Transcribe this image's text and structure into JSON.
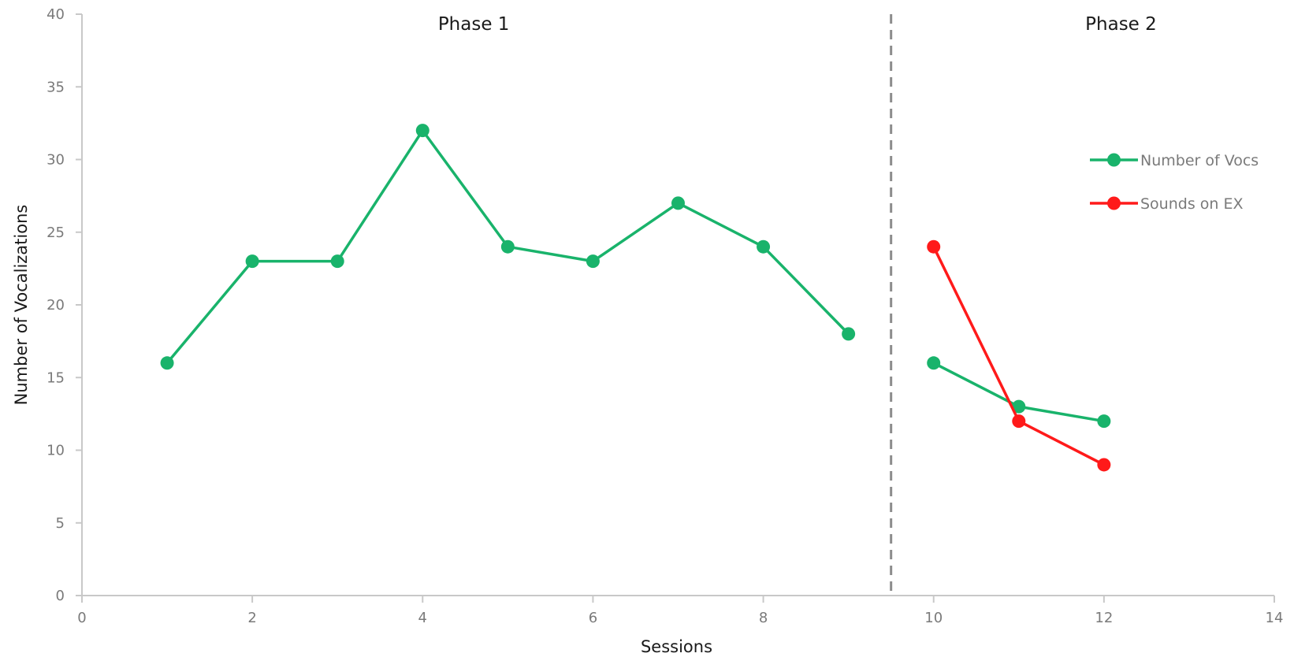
{
  "chart_data": {
    "type": "line",
    "xlabel": "Sessions",
    "ylabel": "Number of Vocalizations",
    "xlim": [
      0,
      14
    ],
    "ylim": [
      0,
      40
    ],
    "xticks": [
      "0",
      "2",
      "4",
      "6",
      "8",
      "10",
      "12",
      "14"
    ],
    "yticks": [
      "0",
      "5",
      "10",
      "15",
      "20",
      "25",
      "30",
      "35",
      "40"
    ],
    "grid": false,
    "legend_position": "right",
    "phase_divider_x": 9.5,
    "phases": [
      {
        "label": "Phase 1",
        "x": 4.6
      },
      {
        "label": "Phase 2",
        "x": 12.2
      }
    ],
    "series": [
      {
        "name": "Number of Vocs",
        "color": "#19b36b",
        "segments": [
          [
            [
              1,
              16
            ],
            [
              2,
              23
            ],
            [
              3,
              23
            ],
            [
              4,
              32
            ],
            [
              5,
              24
            ],
            [
              6,
              23
            ],
            [
              7,
              27
            ],
            [
              8,
              24
            ],
            [
              9,
              18
            ]
          ],
          [
            [
              10,
              16
            ],
            [
              11,
              13
            ],
            [
              12,
              12
            ]
          ]
        ]
      },
      {
        "name": "Sounds on EX",
        "color": "#ff1a1a",
        "segments": [
          [
            [
              10,
              24
            ],
            [
              11,
              12
            ],
            [
              12,
              9
            ]
          ]
        ]
      }
    ]
  }
}
